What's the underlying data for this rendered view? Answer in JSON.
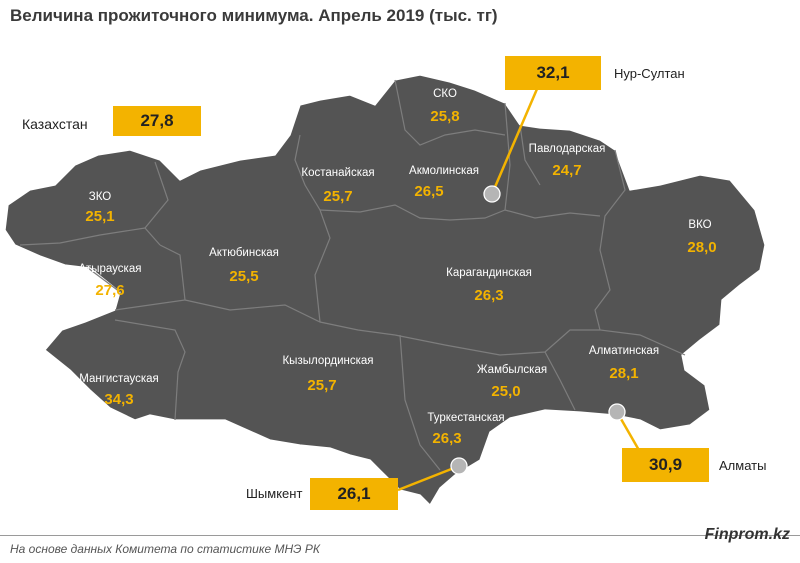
{
  "title": "Величина прожиточного минимума. Апрель 2019 (тыс. тг)",
  "colors": {
    "map_fill": "#545454",
    "value_text": "#f3b300",
    "box_fill": "#f3b300",
    "region_label": "#ffffff"
  },
  "kazakhstan": {
    "label": "Казахстан",
    "value": "27,8"
  },
  "regions": {
    "zko": {
      "name": "ЗКО",
      "value": "25,1"
    },
    "atyrau": {
      "name": "Атырауская",
      "value": "27,6"
    },
    "mangystau": {
      "name": "Мангистауская",
      "value": "34,3"
    },
    "aktobe": {
      "name": "Актюбинская",
      "value": "25,5"
    },
    "kostanay": {
      "name": "Костанайская",
      "value": "25,7"
    },
    "sko": {
      "name": "СКО",
      "value": "25,8"
    },
    "akmola": {
      "name": "Акмолинская",
      "value": "26,5"
    },
    "pavlodar": {
      "name": "Павлодарская",
      "value": "24,7"
    },
    "vko": {
      "name": "ВКО",
      "value": "28,0"
    },
    "karaganda": {
      "name": "Карагандинская",
      "value": "26,3"
    },
    "kyzylorda": {
      "name": "Кызылординская",
      "value": "25,7"
    },
    "zhambyl": {
      "name": "Жамбылская",
      "value": "25,0"
    },
    "almaty_region": {
      "name": "Алматинская",
      "value": "28,1"
    },
    "turkestan": {
      "name": "Туркестанская",
      "value": "26,3"
    }
  },
  "cities": {
    "nur_sultan": {
      "name": "Нур-Султан",
      "value": "32,1"
    },
    "almaty": {
      "name": "Алматы",
      "value": "30,9"
    },
    "shymkent": {
      "name": "Шымкент",
      "value": "26,1"
    }
  },
  "source": "На основе данных Комитета по статистике МНЭ РК",
  "brand": "Finprom.kz"
}
